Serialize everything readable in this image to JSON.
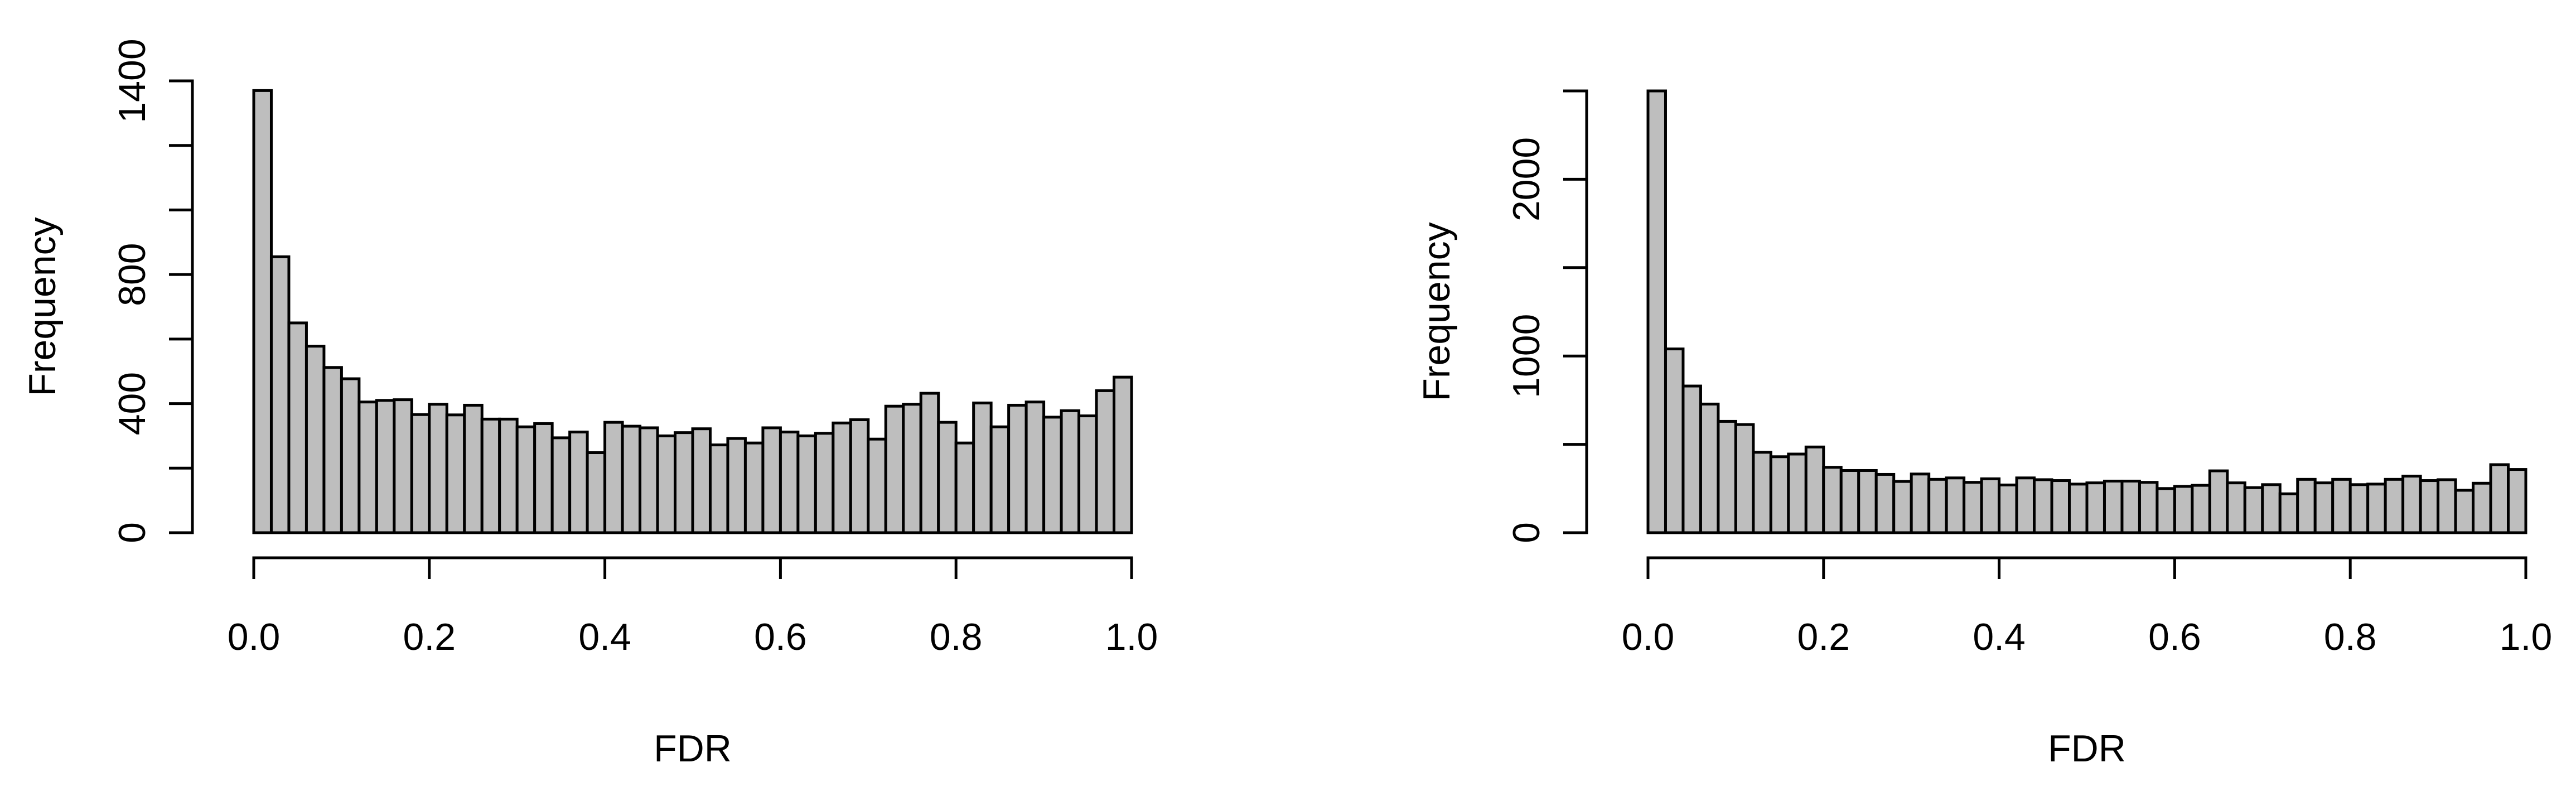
{
  "chart_data": [
    {
      "type": "bar",
      "title": "",
      "xlabel": "FDR",
      "ylabel": "Frequency",
      "xlim": [
        0,
        1
      ],
      "ylim": [
        0,
        1400
      ],
      "bin_width": 0.02,
      "x_ticks": [
        0,
        0.2,
        0.4,
        0.6,
        0.8,
        1.0
      ],
      "x_tick_labels": [
        "0.0",
        "0.2",
        "0.4",
        "0.6",
        "0.8",
        "1.0"
      ],
      "y_ticks": [
        0,
        200,
        400,
        600,
        800,
        1000,
        1200,
        1400
      ],
      "y_tick_labels": [
        "0",
        "",
        "400",
        "",
        "800",
        "",
        "",
        "1400"
      ],
      "bar_color": "#bebebe",
      "grid": false,
      "legend": false,
      "values": [
        1370,
        855,
        650,
        578,
        512,
        477,
        405,
        410,
        412,
        366,
        398,
        365,
        395,
        352,
        352,
        328,
        338,
        294,
        312,
        248,
        342,
        330,
        325,
        300,
        310,
        322,
        272,
        292,
        278,
        325,
        312,
        300,
        308,
        340,
        350,
        290,
        392,
        398,
        432,
        342,
        278,
        402,
        328,
        395,
        405,
        358,
        378,
        362,
        440,
        482
      ]
    },
    {
      "type": "bar",
      "title": "",
      "xlabel": "FDR",
      "ylabel": "Frequency",
      "xlim": [
        0,
        1
      ],
      "ylim": [
        0,
        2500
      ],
      "bin_width": 0.02,
      "x_ticks": [
        0,
        0.2,
        0.4,
        0.6,
        0.8,
        1.0
      ],
      "x_tick_labels": [
        "0.0",
        "0.2",
        "0.4",
        "0.6",
        "0.8",
        "1.0"
      ],
      "y_ticks": [
        0,
        500,
        1000,
        1500,
        2000,
        2500
      ],
      "y_tick_labels": [
        "0",
        "",
        "1000",
        "",
        "2000",
        ""
      ],
      "bar_color": "#bebebe",
      "grid": false,
      "legend": false,
      "values": [
        2500,
        1040,
        830,
        728,
        630,
        612,
        455,
        430,
        445,
        485,
        370,
        352,
        352,
        330,
        290,
        332,
        302,
        310,
        285,
        305,
        270,
        310,
        300,
        295,
        275,
        282,
        292,
        292,
        285,
        250,
        262,
        268,
        350,
        282,
        255,
        272,
        220,
        302,
        282,
        302,
        272,
        275,
        302,
        320,
        295,
        300,
        240,
        280,
        385,
        358
      ]
    }
  ]
}
